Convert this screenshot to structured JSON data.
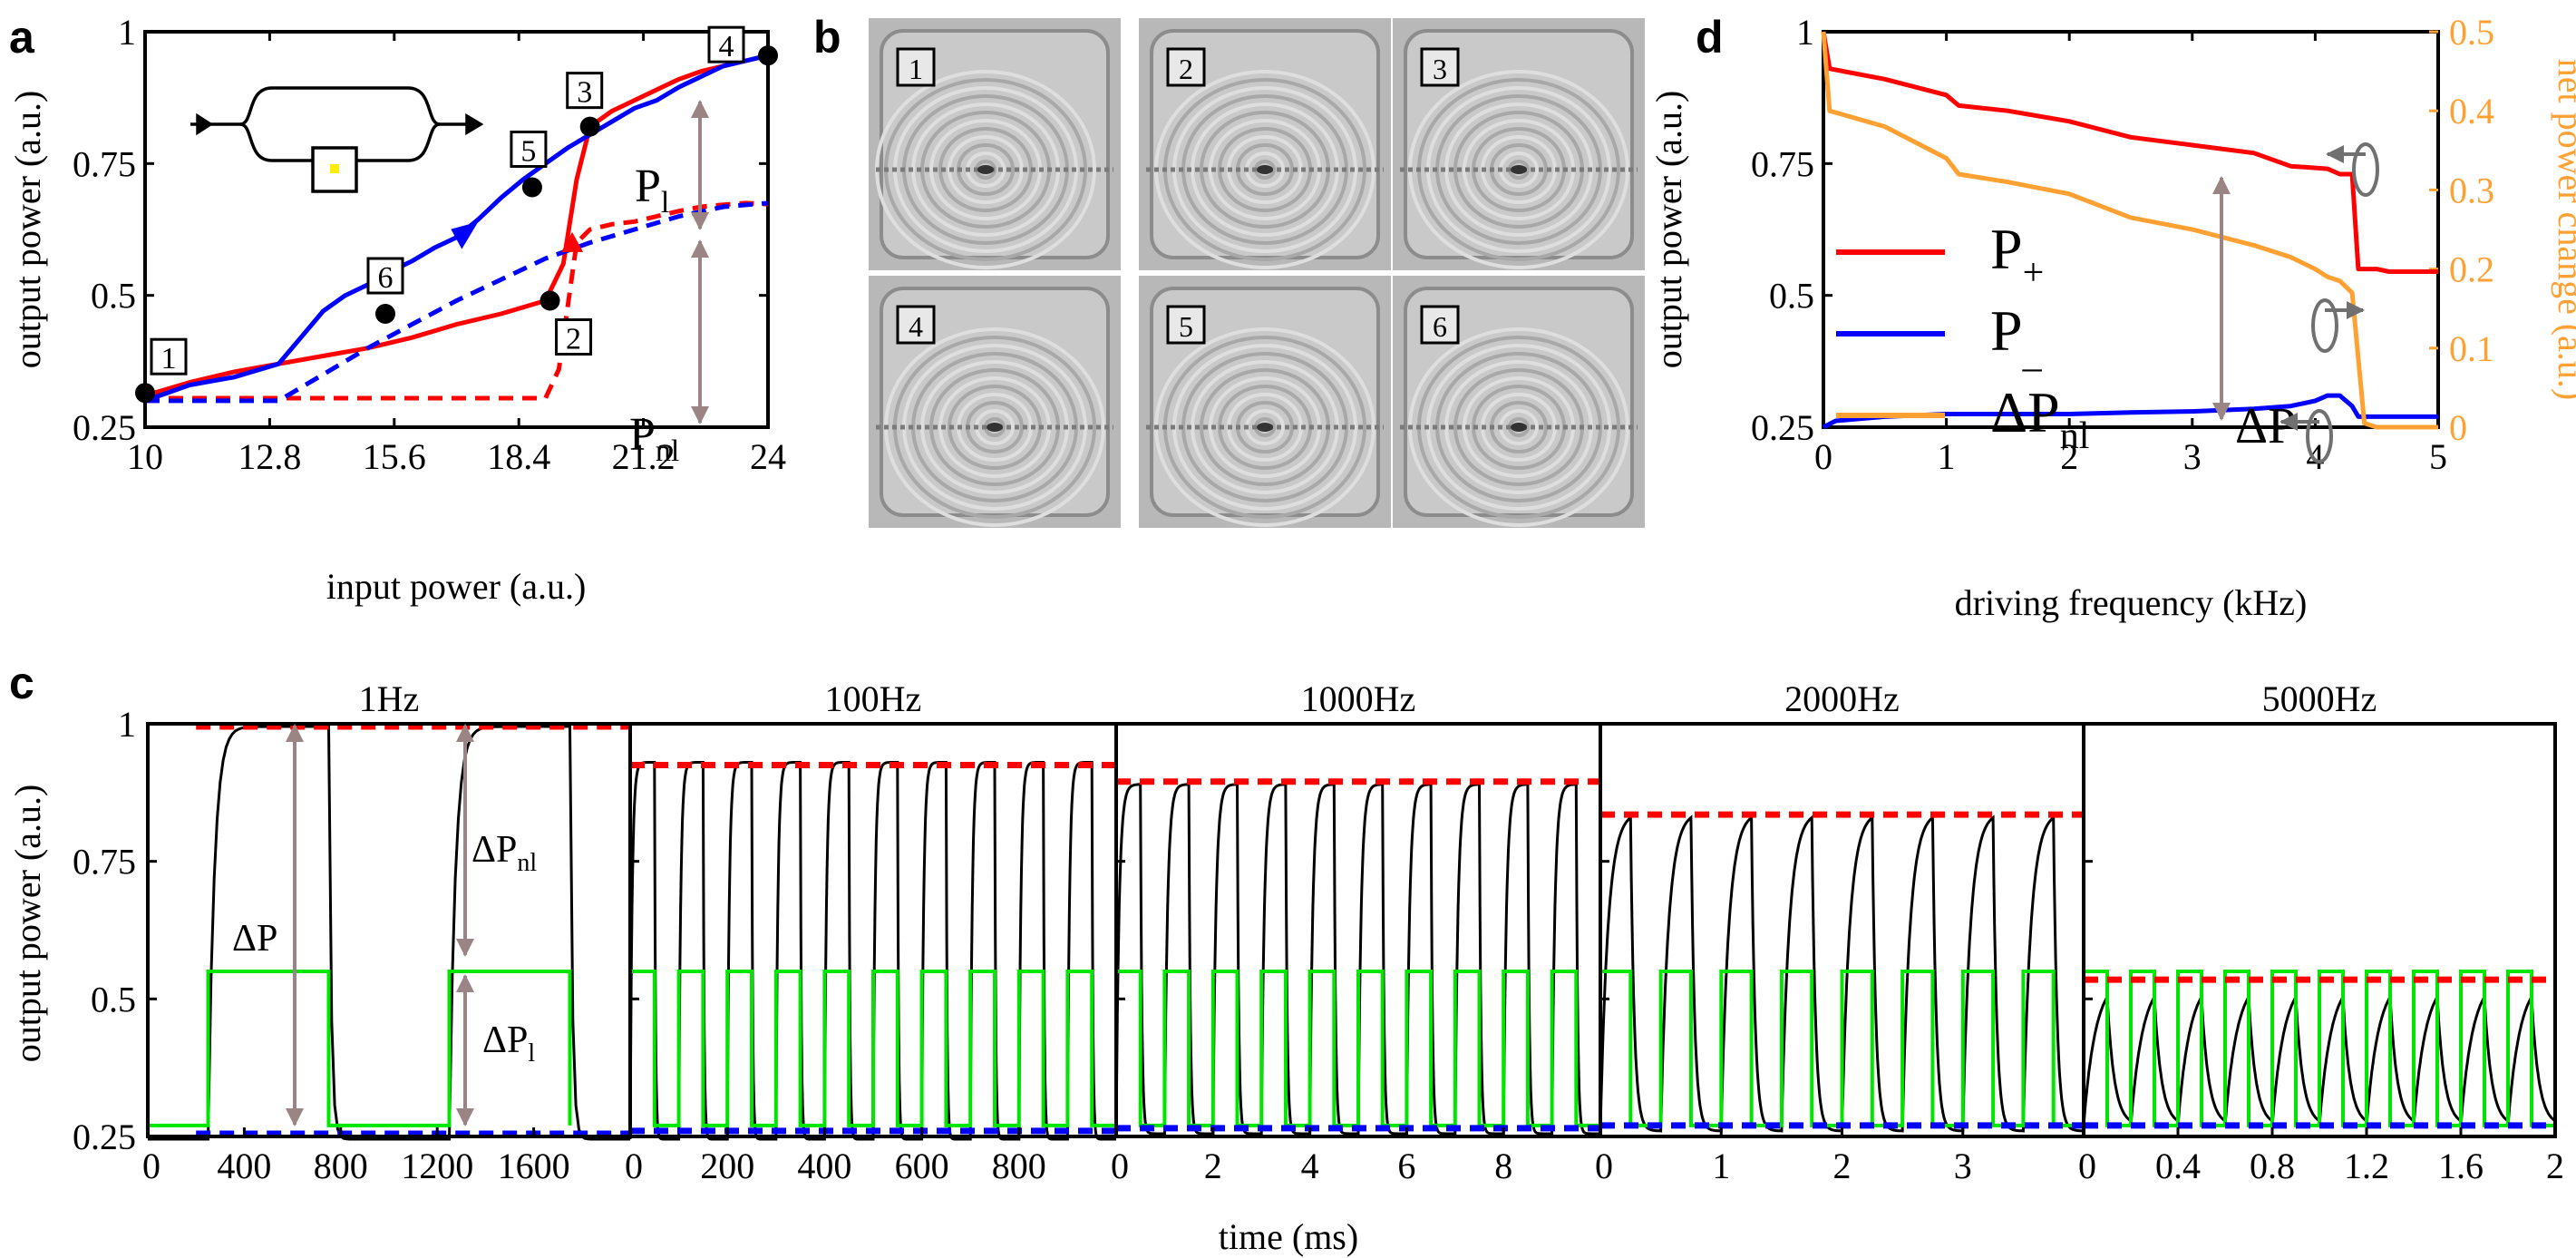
{
  "panel_labels": {
    "a": "a",
    "b": "b",
    "c": "c",
    "d": "d"
  },
  "colors": {
    "red": "#ff0000",
    "blue": "#0000ff",
    "orange": "#ffa033",
    "green": "#00e600",
    "black": "#000000",
    "arrow": "#9b8484",
    "gray": "#707070"
  },
  "panel_a_annotations": {
    "p_l": "P",
    "p_l_sub": "l",
    "p_nl": "P",
    "p_nl_sub": "nl"
  },
  "panel_b": {
    "description_tiles": [
      "1",
      "2",
      "3",
      "4",
      "5",
      "6"
    ]
  },
  "panel_c_annotations": {
    "dp": "ΔP",
    "dpnl": "ΔP",
    "dpnl_sub": "nl",
    "dpl": "ΔP",
    "dpl_sub": "l"
  },
  "panel_d_legend": [
    {
      "label": "P",
      "sub": "+",
      "color": "#ff0000"
    },
    {
      "label": "P",
      "sub": "_",
      "color": "#0000ff"
    },
    {
      "label": "ΔP",
      "sub": "nl",
      "color": "#ffa033"
    }
  ],
  "panel_d_annotations": {
    "dp": "ΔP"
  },
  "chart_data": [
    {
      "id": "a",
      "type": "line",
      "xlabel": "input power (a.u.)",
      "ylabel": "output power (a.u.)",
      "xlim": [
        10,
        24
      ],
      "ylim": [
        0.25,
        1
      ],
      "xticks": [
        10,
        12.8,
        15.6,
        18.4,
        21.2,
        24
      ],
      "xtick_labels": [
        "10",
        "12.8",
        "15.6",
        "18.4",
        "21.2",
        "24"
      ],
      "yticks": [
        0.25,
        0.5,
        0.75,
        1
      ],
      "ytick_labels": [
        "0.25",
        "0.5",
        "0.75",
        "1"
      ],
      "series": [
        {
          "color": "#ff0000",
          "style": "solid",
          "x": [
            10,
            11,
            12,
            13,
            14,
            15,
            16,
            17,
            18,
            19,
            19.4,
            19.7,
            20,
            20.5,
            21,
            21.5,
            22,
            22.5,
            23,
            23.5,
            24
          ],
          "y": [
            0.31,
            0.335,
            0.355,
            0.37,
            0.385,
            0.4,
            0.42,
            0.445,
            0.465,
            0.49,
            0.56,
            0.72,
            0.82,
            0.85,
            0.87,
            0.89,
            0.91,
            0.925,
            0.935,
            0.945,
            0.955
          ]
        },
        {
          "color": "#ff0000",
          "style": "dashed",
          "x": [
            10,
            11,
            12,
            13,
            14,
            15,
            16,
            17,
            18,
            19,
            19.3,
            19.7,
            20,
            20.5,
            21,
            21.5,
            22,
            22.5,
            23,
            23.5,
            24
          ],
          "y": [
            0.305,
            0.305,
            0.305,
            0.305,
            0.305,
            0.305,
            0.305,
            0.305,
            0.305,
            0.305,
            0.36,
            0.6,
            0.625,
            0.635,
            0.64,
            0.65,
            0.66,
            0.668,
            0.672,
            0.675,
            0.673
          ]
        },
        {
          "color": "#0000ff",
          "style": "solid",
          "x": [
            24,
            23.5,
            23,
            22.5,
            22,
            21.5,
            21,
            20.5,
            20,
            19.5,
            19,
            18.5,
            18,
            17.5,
            17,
            16.5,
            16,
            15.5,
            15,
            14.5,
            14,
            13.5,
            13,
            12,
            11,
            10
          ],
          "y": [
            0.955,
            0.945,
            0.935,
            0.915,
            0.895,
            0.87,
            0.855,
            0.83,
            0.805,
            0.78,
            0.75,
            0.72,
            0.685,
            0.645,
            0.61,
            0.59,
            0.565,
            0.545,
            0.52,
            0.5,
            0.47,
            0.42,
            0.37,
            0.345,
            0.33,
            0.3
          ]
        },
        {
          "color": "#0000ff",
          "style": "dashed",
          "x": [
            10,
            11,
            12,
            13,
            14,
            15,
            16,
            17,
            18,
            19,
            20,
            21,
            22,
            23,
            24
          ],
          "y": [
            0.3,
            0.3,
            0.3,
            0.3,
            0.35,
            0.4,
            0.445,
            0.49,
            0.53,
            0.57,
            0.6,
            0.625,
            0.65,
            0.668,
            0.675
          ]
        }
      ],
      "markers": [
        {
          "label": "1",
          "x": 10.0,
          "y": 0.315
        },
        {
          "label": "2",
          "x": 19.1,
          "y": 0.49
        },
        {
          "label": "3",
          "x": 20.0,
          "y": 0.82
        },
        {
          "label": "4",
          "x": 24.0,
          "y": 0.955
        },
        {
          "label": "5",
          "x": 18.7,
          "y": 0.705
        },
        {
          "label": "6",
          "x": 15.4,
          "y": 0.465
        }
      ]
    },
    {
      "id": "c",
      "type": "line",
      "xlabel": "time (ms)",
      "ylabel": "output power (a.u.)",
      "ylim": [
        0.25,
        1
      ],
      "yticks": [
        0.25,
        0.5,
        0.75,
        1
      ],
      "ytick_labels": [
        "0.25",
        "0.5",
        "0.75",
        "1"
      ],
      "subpanels": [
        {
          "title": "1Hz",
          "xlim": [
            0,
            2000
          ],
          "xticks": [
            0,
            400,
            800,
            1200,
            1600
          ],
          "xtick_labels": [
            "0",
            "400",
            "800",
            "1200",
            "1600"
          ],
          "periods": 2,
          "period": 1000,
          "high": 0.995,
          "low": 0.245,
          "rise_tau": 0.05,
          "fall_tau": 0.02,
          "max_dashed": 0.995,
          "min_dashed": 0.255,
          "drive_high": 0.55,
          "drive_low": 0.27
        },
        {
          "title": "100Hz",
          "xlim": [
            0,
            1000
          ],
          "xticks": [
            0,
            200,
            400,
            600,
            800
          ],
          "xtick_labels": [
            "0",
            "200",
            "400",
            "600",
            "800"
          ],
          "periods": 10,
          "period": 100,
          "high": 0.93,
          "low": 0.245,
          "rise_tau": 0.08,
          "fall_tau": 0.04,
          "max_dashed": 0.925,
          "min_dashed": 0.26,
          "drive_high": 0.55,
          "drive_low": 0.27
        },
        {
          "title": "1000Hz",
          "xlim": [
            0,
            10
          ],
          "xticks": [
            0,
            2,
            4,
            6,
            8
          ],
          "xtick_labels": [
            "0",
            "2",
            "4",
            "6",
            "8"
          ],
          "periods": 10,
          "period": 1,
          "high": 0.89,
          "low": 0.255,
          "rise_tau": 0.12,
          "fall_tau": 0.06,
          "max_dashed": 0.895,
          "min_dashed": 0.265,
          "drive_high": 0.55,
          "drive_low": 0.27
        },
        {
          "title": "2000Hz",
          "xlim": [
            0,
            4
          ],
          "xticks": [
            0,
            1,
            2,
            3
          ],
          "xtick_labels": [
            "0",
            "1",
            "2",
            "3"
          ],
          "periods": 8,
          "period": 0.5,
          "high": 0.84,
          "low": 0.26,
          "rise_tau": 0.25,
          "fall_tau": 0.12,
          "max_dashed": 0.835,
          "min_dashed": 0.27,
          "drive_high": 0.55,
          "drive_low": 0.27
        },
        {
          "title": "5000Hz",
          "xlim": [
            0,
            2
          ],
          "xticks": [
            0,
            0.4,
            0.8,
            1.2,
            1.6,
            2
          ],
          "xtick_labels": [
            "0",
            "0.4",
            "0.8",
            "1.2",
            "1.6",
            "2"
          ],
          "periods": 10,
          "period": 0.2,
          "high": 0.54,
          "low": 0.27,
          "rise_tau": 0.5,
          "fall_tau": 0.3,
          "max_dashed": 0.535,
          "min_dashed": 0.27,
          "drive_high": 0.55,
          "drive_low": 0.27
        }
      ]
    },
    {
      "id": "d",
      "type": "line",
      "xlabel": "driving frequency (kHz)",
      "ylabel": "output power (a.u.)",
      "y2label": "net power change (a.u.)",
      "xlim": [
        0,
        5
      ],
      "ylim": [
        0.25,
        1
      ],
      "y2lim": [
        0,
        0.5
      ],
      "xticks": [
        0,
        1,
        2,
        3,
        4,
        5
      ],
      "xtick_labels": [
        "0",
        "1",
        "2",
        "3",
        "4",
        "5"
      ],
      "yticks": [
        0.25,
        0.5,
        0.75,
        1
      ],
      "ytick_labels": [
        "0.25",
        "0.5",
        "0.75",
        "1"
      ],
      "y2ticks": [
        0,
        0.1,
        0.2,
        0.3,
        0.4,
        0.5
      ],
      "y2tick_labels": [
        "0",
        "0.1",
        "0.2",
        "0.3",
        "0.4",
        "0.5"
      ],
      "series": [
        {
          "name": "P+",
          "axis": "left",
          "color": "#ff0000",
          "x": [
            0,
            0.05,
            0.5,
            1,
            1.1,
            1.5,
            2,
            2.5,
            3,
            3.5,
            3.8,
            4.1,
            4.2,
            4.3,
            4.35,
            4.5,
            4.6,
            5
          ],
          "y": [
            1,
            0.93,
            0.91,
            0.88,
            0.86,
            0.85,
            0.83,
            0.8,
            0.785,
            0.77,
            0.745,
            0.74,
            0.73,
            0.73,
            0.55,
            0.55,
            0.545,
            0.545
          ]
        },
        {
          "name": "P-",
          "axis": "left",
          "color": "#0000ff",
          "x": [
            0,
            0.1,
            0.5,
            1,
            1.5,
            2,
            2.5,
            3,
            3.5,
            3.8,
            4,
            4.1,
            4.2,
            4.3,
            4.35,
            4.5,
            5
          ],
          "y": [
            0.25,
            0.262,
            0.27,
            0.275,
            0.275,
            0.275,
            0.278,
            0.28,
            0.285,
            0.29,
            0.3,
            0.31,
            0.31,
            0.29,
            0.27,
            0.27,
            0.27
          ]
        },
        {
          "name": "ΔPnl",
          "axis": "right",
          "color": "#ffa033",
          "x": [
            0,
            0.05,
            0.5,
            1,
            1.1,
            1.5,
            2,
            2.5,
            3,
            3.5,
            3.8,
            4,
            4.1,
            4.2,
            4.3,
            4.4,
            4.5,
            5
          ],
          "y": [
            0.5,
            0.4,
            0.38,
            0.34,
            0.32,
            0.31,
            0.295,
            0.265,
            0.25,
            0.23,
            0.215,
            0.2,
            0.19,
            0.185,
            0.17,
            0.005,
            0.0,
            0.0
          ]
        }
      ]
    }
  ]
}
